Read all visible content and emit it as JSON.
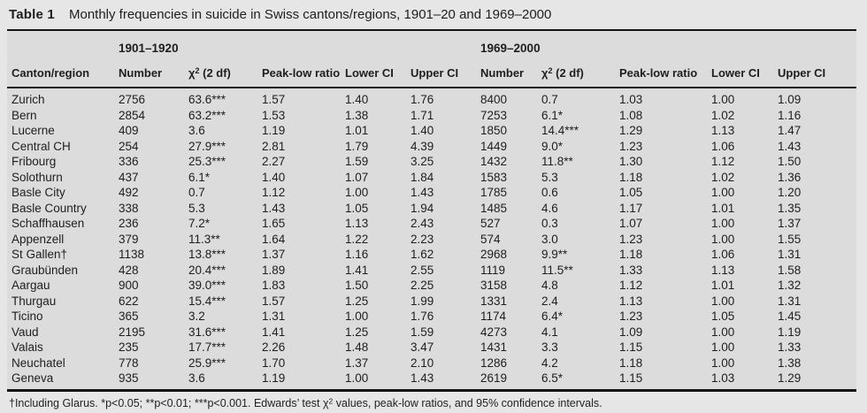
{
  "title": {
    "label": "Table 1",
    "text": "Monthly frequencies in suicide in Swiss cantons/regions, 1901–20 and 1969–2000"
  },
  "table": {
    "group_headers": [
      "1901–1920",
      "1969–2000"
    ],
    "columns": {
      "canton": "Canton/region",
      "number": "Number",
      "chi": {
        "base": "χ",
        "sup": "2",
        "rest": " (2 df)"
      },
      "peak": "Peak-low ratio",
      "lower": "Lower CI",
      "upper": "Upper CI"
    },
    "column_keys": [
      "canton",
      "number-1901",
      "chi2-1901",
      "peak-low-1901",
      "lower-ci-1901",
      "upper-ci-1901",
      "number-1969",
      "chi2-1969",
      "peak-low-1969",
      "lower-ci-1969",
      "upper-ci-1969"
    ],
    "rows": [
      [
        "Zurich",
        "2756",
        "63.6***",
        "1.57",
        "1.40",
        "1.76",
        "8400",
        "0.7",
        "1.03",
        "1.00",
        "1.09"
      ],
      [
        "Bern",
        "2854",
        "63.2***",
        "1.53",
        "1.38",
        "1.71",
        "7253",
        "6.1*",
        "1.08",
        "1.02",
        "1.16"
      ],
      [
        "Lucerne",
        "409",
        "3.6",
        "1.19",
        "1.01",
        "1.40",
        "1850",
        "14.4***",
        "1.29",
        "1.13",
        "1.47"
      ],
      [
        "Central CH",
        "254",
        "27.9***",
        "2.81",
        "1.79",
        "4.39",
        "1449",
        "9.0*",
        "1.23",
        "1.06",
        "1.43"
      ],
      [
        "Fribourg",
        "336",
        "25.3***",
        "2.27",
        "1.59",
        "3.25",
        "1432",
        "11.8**",
        "1.30",
        "1.12",
        "1.50"
      ],
      [
        "Solothurn",
        "437",
        "6.1*",
        "1.40",
        "1.07",
        "1.84",
        "1583",
        "5.3",
        "1.18",
        "1.02",
        "1.36"
      ],
      [
        "Basle City",
        "492",
        "0.7",
        "1.12",
        "1.00",
        "1.43",
        "1785",
        "0.6",
        "1.05",
        "1.00",
        "1.20"
      ],
      [
        "Basle Country",
        "338",
        "5.3",
        "1.43",
        "1.05",
        "1.94",
        "1485",
        "4.6",
        "1.17",
        "1.01",
        "1.35"
      ],
      [
        "Schaffhausen",
        "236",
        "7.2*",
        "1.65",
        "1.13",
        "2.43",
        "527",
        "0.3",
        "1.07",
        "1.00",
        "1.37"
      ],
      [
        "Appenzell",
        "379",
        "11.3**",
        "1.64",
        "1.22",
        "2.23",
        "574",
        "3.0",
        "1.23",
        "1.00",
        "1.55"
      ],
      [
        "St Gallen†",
        "1138",
        "13.8***",
        "1.37",
        "1.16",
        "1.62",
        "2968",
        "9.9**",
        "1.18",
        "1.06",
        "1.31"
      ],
      [
        "Graubünden",
        "428",
        "20.4***",
        "1.89",
        "1.41",
        "2.55",
        "1119",
        "11.5**",
        "1.33",
        "1.13",
        "1.58"
      ],
      [
        "Aargau",
        "900",
        "39.0***",
        "1.83",
        "1.50",
        "2.25",
        "3158",
        "4.8",
        "1.12",
        "1.01",
        "1.32"
      ],
      [
        "Thurgau",
        "622",
        "15.4***",
        "1.57",
        "1.25",
        "1.99",
        "1331",
        "2.4",
        "1.13",
        "1.00",
        "1.31"
      ],
      [
        "Ticino",
        "365",
        "3.2",
        "1.31",
        "1.00",
        "1.76",
        "1174",
        "6.4*",
        "1.23",
        "1.05",
        "1.45"
      ],
      [
        "Vaud",
        "2195",
        "31.6***",
        "1.41",
        "1.25",
        "1.59",
        "4273",
        "4.1",
        "1.09",
        "1.00",
        "1.19"
      ],
      [
        "Valais",
        "235",
        "17.7***",
        "2.26",
        "1.48",
        "3.47",
        "1431",
        "3.3",
        "1.15",
        "1.00",
        "1.33"
      ],
      [
        "Neuchatel",
        "778",
        "25.9***",
        "1.70",
        "1.37",
        "2.10",
        "1286",
        "4.2",
        "1.18",
        "1.00",
        "1.38"
      ],
      [
        "Geneva",
        "935",
        "3.6",
        "1.19",
        "1.00",
        "1.43",
        "2619",
        "6.5*",
        "1.15",
        "1.03",
        "1.29"
      ]
    ]
  },
  "footnote": {
    "before": "†Including Glarus. *p<0.05; **p<0.01; ***p<0.001. Edwards’ test χ",
    "sup": "2",
    "after": " values, peak-low ratios, and 95% confidence intervals."
  }
}
